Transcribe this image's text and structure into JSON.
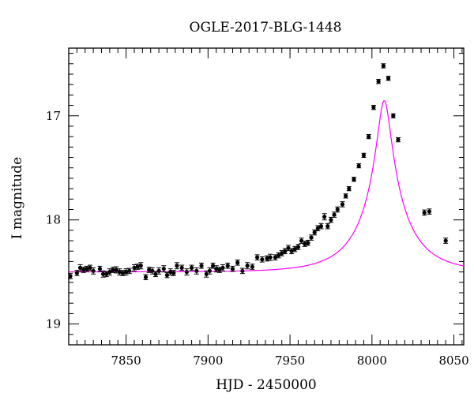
{
  "chart_data": {
    "type": "scatter",
    "title": "OGLE-2017-BLG-1448",
    "xlabel": "HJD - 2450000",
    "ylabel": "I magnitude",
    "xlim": [
      7815,
      8056
    ],
    "ylim": [
      19.2,
      16.35
    ],
    "y_inverted": true,
    "grid": false,
    "xticks": [
      7850,
      7900,
      7950,
      8000,
      8050
    ],
    "yticks": [
      17,
      18,
      19
    ],
    "point_color": "#000000",
    "model_color": "#ff00ff",
    "model": {
      "baseline_mag": 18.5,
      "t0": 8007.5,
      "tE": 29,
      "u0": 0.135,
      "blend_fraction": 0.55,
      "x_range": [
        7815,
        8056
      ]
    },
    "series": [
      {
        "x": [
          7816,
          7820,
          7822,
          7824,
          7826,
          7828,
          7830,
          7834,
          7836,
          7838,
          7840,
          7842,
          7844,
          7846,
          7848,
          7850,
          7852,
          7855,
          7857,
          7859,
          7862,
          7864,
          7866,
          7868,
          7870,
          7873,
          7875,
          7877,
          7879,
          7881,
          7884,
          7887,
          7890,
          7893,
          7896,
          7899,
          7901,
          7903,
          7905,
          7907,
          7909,
          7912,
          7915,
          7918,
          7921,
          7924,
          7927,
          7930,
          7933,
          7936,
          7938,
          7941,
          7943,
          7945,
          7947,
          7949,
          7951,
          7953,
          7955,
          7957,
          7959,
          7961,
          7963,
          7965,
          7967,
          7969,
          7971,
          7973,
          7975,
          7977,
          7979,
          7982,
          7984,
          7986,
          7989,
          7992,
          7995,
          7998,
          8001,
          8004,
          8007,
          8010,
          8013,
          8016,
          8032,
          8035,
          8045
        ],
        "y": [
          18.54,
          18.51,
          18.46,
          18.48,
          18.47,
          18.46,
          18.49,
          18.47,
          18.52,
          18.52,
          18.5,
          18.48,
          18.48,
          18.5,
          18.51,
          18.5,
          18.49,
          18.46,
          18.45,
          18.44,
          18.55,
          18.48,
          18.49,
          18.52,
          18.49,
          18.47,
          18.53,
          18.5,
          18.51,
          18.44,
          18.46,
          18.5,
          18.46,
          18.49,
          18.44,
          18.52,
          18.49,
          18.44,
          18.47,
          18.48,
          18.46,
          18.44,
          18.47,
          18.41,
          18.49,
          18.44,
          18.45,
          18.36,
          18.38,
          18.37,
          18.36,
          18.36,
          18.34,
          18.32,
          18.3,
          18.27,
          18.3,
          18.28,
          18.26,
          18.2,
          18.23,
          18.22,
          18.17,
          18.12,
          18.08,
          18.06,
          17.97,
          18.06,
          18.0,
          17.95,
          17.9,
          17.85,
          17.77,
          17.7,
          17.61,
          17.48,
          17.38,
          17.2,
          16.92,
          16.67,
          16.52,
          16.64,
          17.0,
          17.23,
          17.93,
          17.92,
          18.2
        ],
        "err": [
          0.025,
          0.025,
          0.03,
          0.025,
          0.025,
          0.025,
          0.03,
          0.025,
          0.03,
          0.025,
          0.03,
          0.025,
          0.03,
          0.03,
          0.025,
          0.03,
          0.025,
          0.03,
          0.025,
          0.03,
          0.025,
          0.025,
          0.03,
          0.025,
          0.03,
          0.03,
          0.025,
          0.03,
          0.025,
          0.03,
          0.025,
          0.03,
          0.025,
          0.03,
          0.025,
          0.03,
          0.03,
          0.025,
          0.03,
          0.025,
          0.03,
          0.025,
          0.025,
          0.025,
          0.025,
          0.03,
          0.025,
          0.025,
          0.025,
          0.025,
          0.03,
          0.025,
          0.025,
          0.025,
          0.025,
          0.025,
          0.025,
          0.025,
          0.025,
          0.025,
          0.025,
          0.025,
          0.025,
          0.025,
          0.025,
          0.025,
          0.03,
          0.025,
          0.025,
          0.025,
          0.025,
          0.025,
          0.02,
          0.02,
          0.02,
          0.02,
          0.02,
          0.02,
          0.02,
          0.02,
          0.02,
          0.02,
          0.02,
          0.02,
          0.025,
          0.025,
          0.025
        ]
      }
    ]
  }
}
